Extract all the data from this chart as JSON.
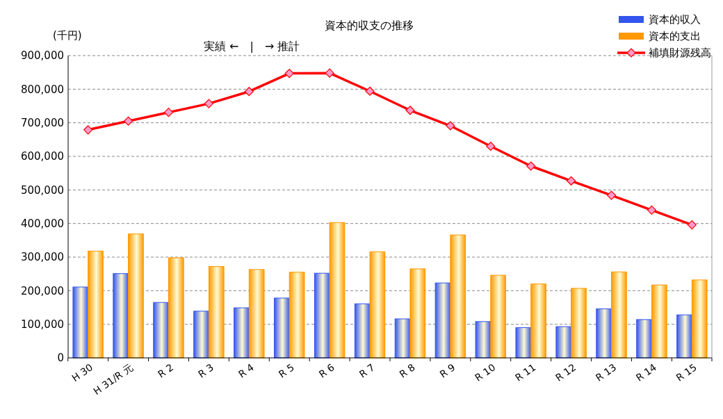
{
  "chart_data": {
    "type": "bar",
    "title": "資本的収支の推移",
    "ylabel": "(千円)",
    "annotations": [
      "実績 ←　|　→ 推計"
    ],
    "categories": [
      "H 30",
      "H 31/R 元",
      "R 2",
      "R 3",
      "R 4",
      "R 5",
      "R 6",
      "R 7",
      "R 8",
      "R 9",
      "R 10",
      "R 11",
      "R 12",
      "R 13",
      "R 14",
      "R 15"
    ],
    "series": [
      {
        "name": "資本的収入",
        "color": "#3355ee",
        "values": [
          211000,
          251000,
          165000,
          139000,
          149000,
          178000,
          252000,
          161000,
          116000,
          223000,
          108000,
          90000,
          93000,
          146000,
          114000,
          128000
        ]
      },
      {
        "name": "資本的支出",
        "color": "#ff9900",
        "values": [
          318000,
          369000,
          298000,
          272000,
          263000,
          255000,
          403000,
          316000,
          265000,
          366000,
          246000,
          220000,
          207000,
          256000,
          217000,
          232000
        ]
      },
      {
        "name": "補填財源残高",
        "type": "line",
        "color": "#ff0000",
        "marker": "diamond",
        "values": [
          679000,
          705000,
          731000,
          757000,
          793000,
          847000,
          848000,
          794000,
          737000,
          691000,
          630000,
          571000,
          527000,
          484000,
          440000,
          396000
        ]
      }
    ],
    "ylim": [
      0,
      900000
    ],
    "yticks": [
      {
        "value": 0,
        "label": "0"
      },
      {
        "value": 100000,
        "label": "100,000"
      },
      {
        "value": 200000,
        "label": "200,000"
      },
      {
        "value": 300000,
        "label": "300,000"
      },
      {
        "value": 400000,
        "label": "400,000"
      },
      {
        "value": 500000,
        "label": "500,000"
      },
      {
        "value": 600000,
        "label": "600,000"
      },
      {
        "value": 700000,
        "label": "700,000"
      },
      {
        "value": 800000,
        "label": "800,000"
      },
      {
        "value": 900000,
        "label": "900,000"
      }
    ],
    "grid": "y",
    "legend": "top right"
  }
}
